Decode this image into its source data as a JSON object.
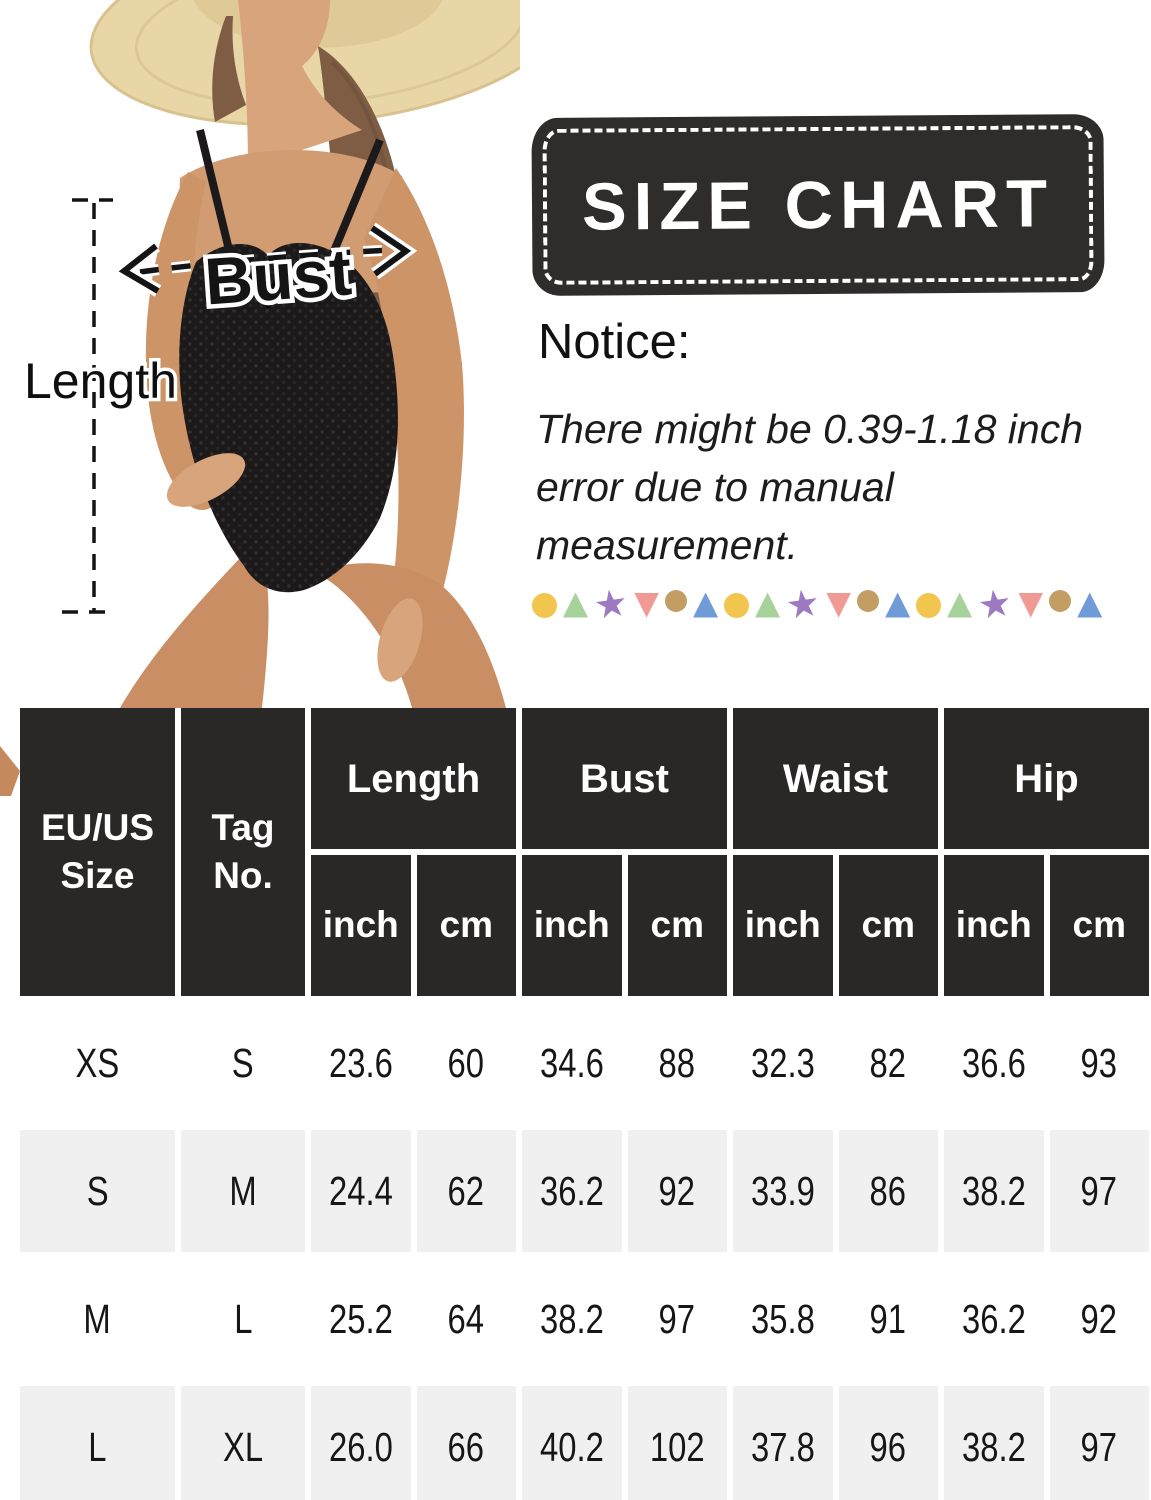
{
  "illustration": {
    "length_label": "Length",
    "bust_label": "Bust"
  },
  "banner": {
    "title": "SIZE CHART"
  },
  "notice": {
    "heading": "Notice:",
    "body": "There might be 0.39-1.18 inch error due to manual measurement."
  },
  "divider_shapes": [
    {
      "shape": "circle",
      "color": "#f2c54f"
    },
    {
      "shape": "triangle",
      "color": "#a7d29c"
    },
    {
      "shape": "star",
      "color": "#9d7ac1"
    },
    {
      "shape": "triangle-down",
      "color": "#f19993"
    },
    {
      "shape": "circle small",
      "color": "#c29e63"
    },
    {
      "shape": "triangle",
      "color": "#6f9cd9"
    },
    {
      "shape": "circle",
      "color": "#f2c54f"
    },
    {
      "shape": "triangle",
      "color": "#a7d29c"
    },
    {
      "shape": "star",
      "color": "#9d7ac1"
    },
    {
      "shape": "triangle-down",
      "color": "#f19993"
    },
    {
      "shape": "circle small",
      "color": "#c29e63"
    },
    {
      "shape": "triangle",
      "color": "#6f9cd9"
    },
    {
      "shape": "circle",
      "color": "#f2c54f"
    },
    {
      "shape": "triangle",
      "color": "#a7d29c"
    },
    {
      "shape": "star",
      "color": "#9d7ac1"
    },
    {
      "shape": "triangle-down",
      "color": "#f19993"
    },
    {
      "shape": "circle small",
      "color": "#c29e63"
    },
    {
      "shape": "triangle",
      "color": "#6f9cd9"
    }
  ],
  "size_table": {
    "header": {
      "size_col": "EU/US Size",
      "tag_col": "Tag No.",
      "groups": [
        "Length",
        "Bust",
        "Waist",
        "Hip"
      ],
      "unit_inch": "inch",
      "unit_cm": "cm"
    },
    "rows": [
      {
        "cells": [
          "XS",
          "S",
          "23.6",
          "60",
          "34.6",
          "88",
          "32.3",
          "82",
          "36.6",
          "93"
        ]
      },
      {
        "cells": [
          "S",
          "M",
          "24.4",
          "62",
          "36.2",
          "92",
          "33.9",
          "86",
          "38.2",
          "97"
        ]
      },
      {
        "cells": [
          "M",
          "L",
          "25.2",
          "64",
          "38.2",
          "97",
          "35.8",
          "91",
          "36.2",
          "92"
        ]
      },
      {
        "cells": [
          "L",
          "XL",
          "26.0",
          "66",
          "40.2",
          "102",
          "37.8",
          "96",
          "38.2",
          "97"
        ]
      }
    ]
  },
  "colors": {
    "table_header_bg": "#2a2727",
    "table_alt_row_bg": "#f1f0f0",
    "banner_bg": "#2f2c2c",
    "text_on_dark": "#ffffff",
    "swimsuit": "#1b1919",
    "skin": "#cd9467"
  }
}
